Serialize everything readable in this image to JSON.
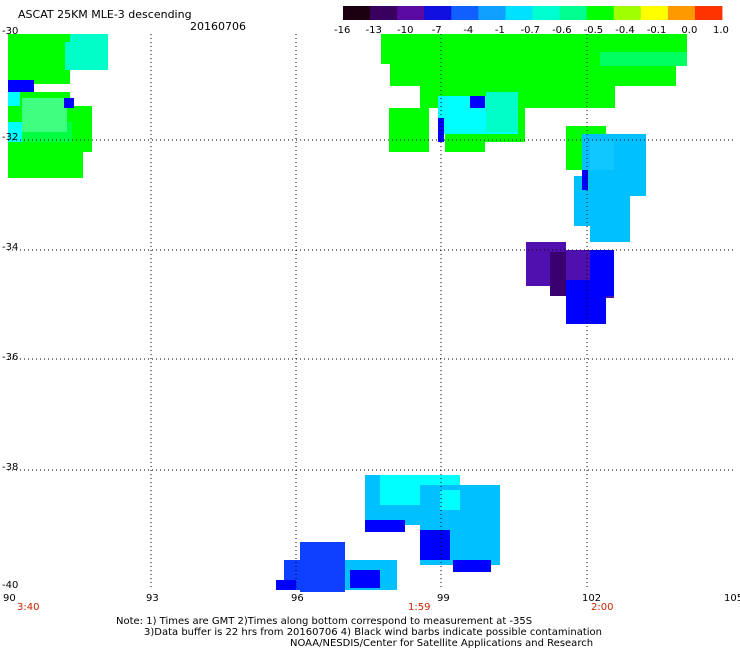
{
  "header": {
    "title": "ASCAT 25KM MLE-3 descending",
    "date": "20160706"
  },
  "colorbar": {
    "colors": [
      "#1a0010",
      "#3a0060",
      "#5a0aa0",
      "#1010e0",
      "#1060ff",
      "#10a0ff",
      "#00e0ff",
      "#00ffd0",
      "#00ff90",
      "#00ff00",
      "#a0ff00",
      "#ffff00",
      "#ff9900",
      "#ff3300"
    ],
    "labels": [
      "-16",
      "-13",
      "-10",
      "-7",
      "-4",
      "-1",
      "-0.7",
      "-0.6",
      "-0.5",
      "-0.4",
      "-0.1",
      "0.0",
      "1.0"
    ]
  },
  "axes": {
    "lon_ticks": [
      "90",
      "93",
      "96",
      "99",
      "102",
      "105"
    ],
    "lat_ticks": [
      "-30",
      "-32",
      "-34",
      "-36",
      "-38",
      "-40"
    ],
    "times": [
      "3:40",
      "1:59",
      "2:00"
    ]
  },
  "notes": {
    "line1": "Note: 1) Times are GMT 2)Times along bottom correspond to measurement at -35S",
    "line2": "3)Data buffer is 22 hrs from 20160706 4) Black wind barbs indicate possible contamination",
    "line3": "NOAA/NESDIS/Center for Satellite Applications and Research"
  },
  "colors": {
    "green": "#00ff00",
    "bright_green": "#00ff40",
    "aqua": "#00ffc8",
    "cyan": "#00ffff",
    "light_blue": "#00c0ff",
    "blue": "#1040ff",
    "deep_blue": "#0000ff",
    "purple": "#5010b0",
    "dark_purple": "#3a0070"
  }
}
